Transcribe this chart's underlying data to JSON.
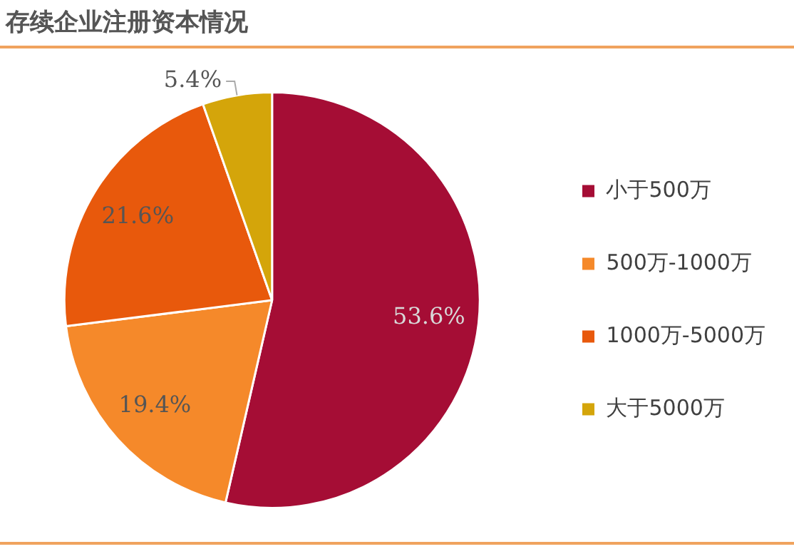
{
  "chart_data": {
    "type": "pie",
    "title": "存续企业注册资本情况",
    "categories": [
      "小于500万",
      "500万-1000万",
      "1000万-5000万",
      "大于5000万"
    ],
    "values": [
      53.6,
      19.4,
      21.6,
      5.4
    ],
    "colors": [
      "#a50d35",
      "#f5892a",
      "#e8590c",
      "#d4a50a"
    ],
    "value_labels": [
      "53.6%",
      "19.4%",
      "21.6%",
      "5.4%"
    ],
    "legend": "right"
  }
}
